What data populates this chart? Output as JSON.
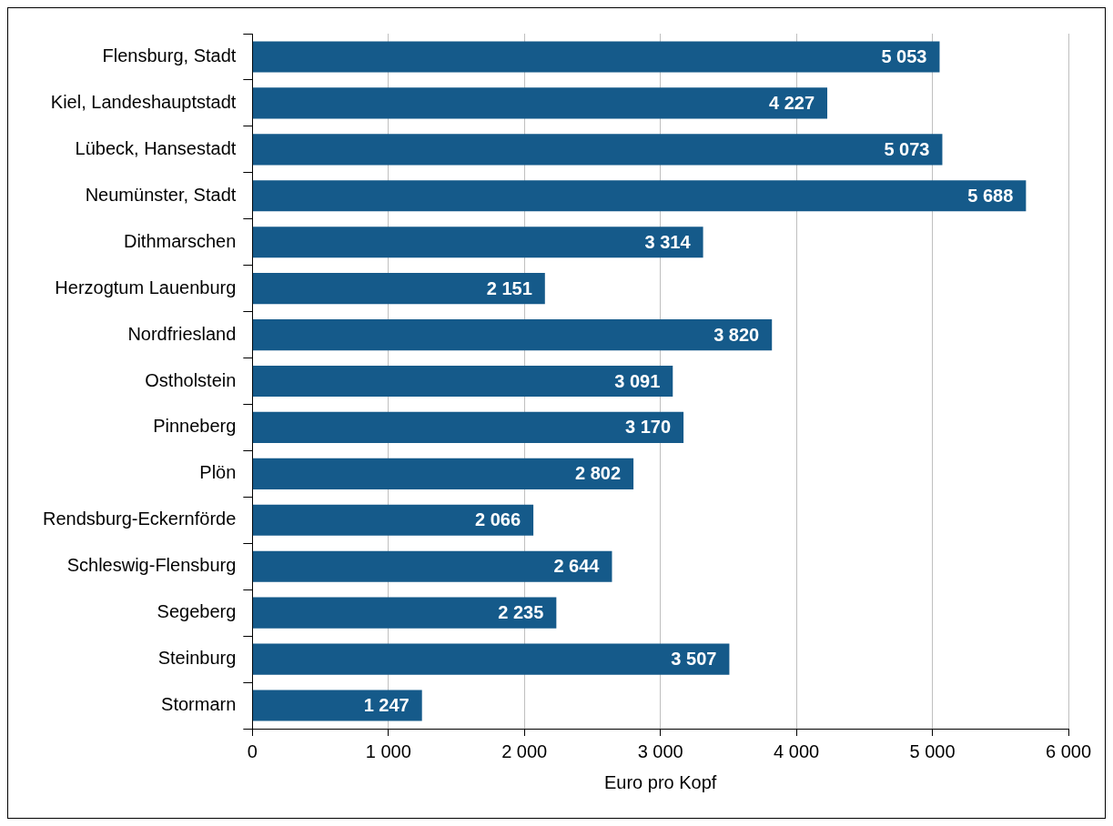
{
  "chart_data": {
    "type": "bar",
    "orientation": "horizontal",
    "xlabel": "Euro pro Kopf",
    "categories": [
      "Flensburg, Stadt",
      "Kiel, Landeshauptstadt",
      "Lübeck, Hansestadt",
      "Neumünster, Stadt",
      "Dithmarschen",
      "Herzogtum Lauenburg",
      "Nordfriesland",
      "Ostholstein",
      "Pinneberg",
      "Plön",
      "Rendsburg-Eckernförde",
      "Schleswig-Flensburg",
      "Segeberg",
      "Steinburg",
      "Stormarn"
    ],
    "values": [
      5053,
      4227,
      5073,
      5688,
      3314,
      2151,
      3820,
      3091,
      3170,
      2802,
      2066,
      2644,
      2235,
      3507,
      1247
    ],
    "value_labels": [
      "5 053",
      "4 227",
      "5 073",
      "5 688",
      "3 314",
      "2 151",
      "3 820",
      "3 091",
      "3 170",
      "2 802",
      "2 066",
      "2 644",
      "2 235",
      "3 507",
      "1 247"
    ],
    "color": "#155a8a",
    "xlim": [
      0,
      6000
    ],
    "xticks": [
      {
        "value": 0,
        "label": "0"
      },
      {
        "value": 1000,
        "label": "1 000"
      },
      {
        "value": 2000,
        "label": "2 000"
      },
      {
        "value": 3000,
        "label": "3 000"
      },
      {
        "value": 4000,
        "label": "4 000"
      },
      {
        "value": 5000,
        "label": "5 000"
      },
      {
        "value": 6000,
        "label": "6 000"
      }
    ],
    "grid": "x",
    "legend": false
  }
}
